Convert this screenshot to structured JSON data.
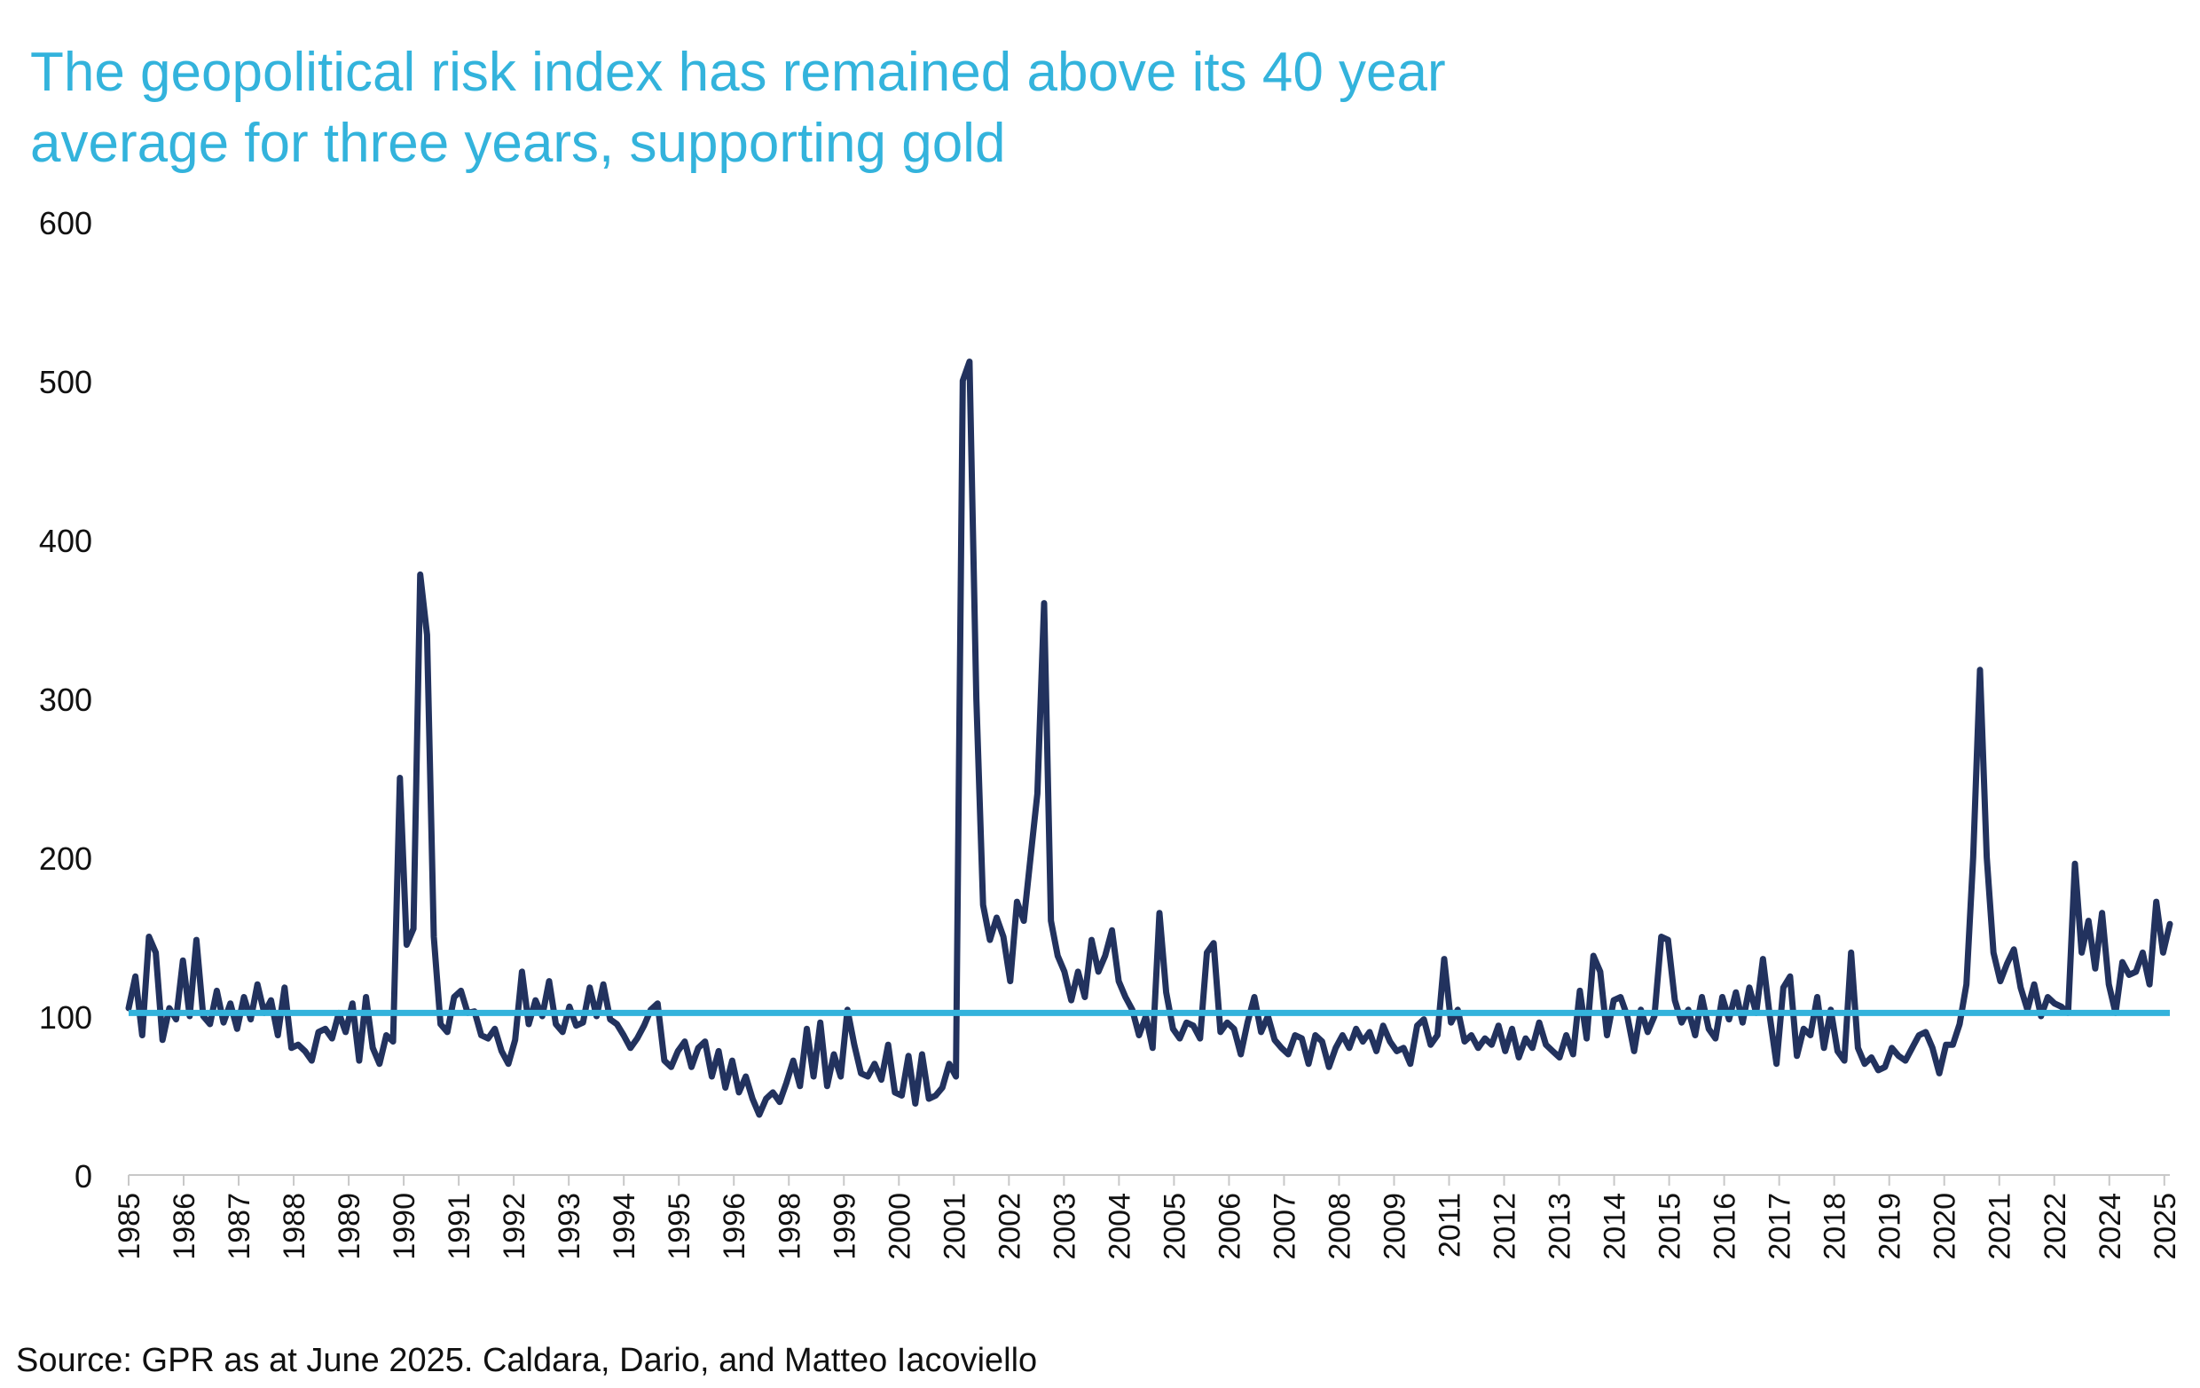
{
  "title_lines": [
    "The geopolitical risk index has remained above its 40 year",
    "average for three years, supporting gold"
  ],
  "source": "Source: GPR as at June 2025. Caldara, Dario, and Matteo Iacoviello",
  "colors": {
    "series": "#22325e",
    "average": "#33b3dc",
    "title": "#33b3dc",
    "axis": "#c8c8c8",
    "text": "#111111"
  },
  "chart_data": {
    "type": "line",
    "title": "The geopolitical risk index has remained above its 40 year average for three years, supporting gold",
    "xlabel": "",
    "ylabel": "",
    "ylim": [
      0,
      600
    ],
    "yticks": [
      "0",
      "100",
      "200",
      "300",
      "400",
      "500",
      "600"
    ],
    "xtick_labels": [
      "1985",
      "1986",
      "1987",
      "1988",
      "1989",
      "1990",
      "1991",
      "1992",
      "1993",
      "1994",
      "1995",
      "1996",
      "1998",
      "1999",
      "2000",
      "2001",
      "2002",
      "2003",
      "2004",
      "2005",
      "2006",
      "2007",
      "2008",
      "2009",
      "2011",
      "2012",
      "2013",
      "2014",
      "2015",
      "2016",
      "2017",
      "2018",
      "2019",
      "2020",
      "2021",
      "2022",
      "2024",
      "2025"
    ],
    "series": [
      {
        "name": "Geopolitical Risk Index",
        "x_start": 1985.0,
        "x_end": 2025.45,
        "values": [
          105,
          125,
          88,
          150,
          140,
          85,
          105,
          98,
          135,
          100,
          148,
          100,
          95,
          116,
          96,
          108,
          92,
          112,
          98,
          120,
          102,
          110,
          88,
          118,
          80,
          82,
          78,
          72,
          90,
          92,
          86,
          102,
          90,
          108,
          72,
          112,
          80,
          70,
          88,
          84,
          250,
          145,
          155,
          378,
          340,
          150,
          95,
          90,
          112,
          116,
          102,
          103,
          88,
          86,
          92,
          78,
          70,
          85,
          128,
          95,
          110,
          100,
          122,
          95,
          90,
          106,
          94,
          96,
          118,
          100,
          120,
          98,
          95,
          88,
          80,
          86,
          94,
          104,
          108,
          72,
          68,
          78,
          84,
          68,
          80,
          84,
          62,
          78,
          55,
          72,
          52,
          62,
          48,
          38,
          48,
          52,
          46,
          58,
          72,
          56,
          92,
          62,
          96,
          56,
          76,
          62,
          104,
          82,
          64,
          62,
          70,
          60,
          82,
          52,
          50,
          75,
          45,
          76,
          48,
          50,
          55,
          70,
          62,
          500,
          512,
          300,
          170,
          148,
          162,
          150,
          122,
          172,
          160,
          200,
          240,
          360,
          160,
          138,
          128,
          110,
          128,
          112,
          148,
          128,
          138,
          154,
          122,
          112,
          104,
          88,
          100,
          80,
          165,
          115,
          92,
          86,
          96,
          94,
          86,
          140,
          146,
          90,
          96,
          92,
          76,
          96,
          112,
          90,
          100,
          85,
          80,
          76,
          88,
          86,
          70,
          88,
          84,
          68,
          80,
          88,
          80,
          92,
          84,
          90,
          78,
          94,
          84,
          78,
          80,
          70,
          94,
          98,
          82,
          88,
          136,
          96,
          104,
          84,
          88,
          80,
          86,
          82,
          94,
          78,
          92,
          74,
          86,
          80,
          96,
          82,
          78,
          74,
          88,
          76,
          116,
          86,
          138,
          128,
          88,
          110,
          112,
          100,
          78,
          104,
          90,
          100,
          150,
          148,
          110,
          96,
          104,
          88,
          112,
          92,
          86,
          112,
          98,
          115,
          96,
          118,
          102,
          136,
          100,
          70,
          118,
          125,
          75,
          92,
          88,
          112,
          80,
          104,
          78,
          72,
          140,
          80,
          70,
          74,
          66,
          68,
          80,
          75,
          72,
          80,
          88,
          90,
          80,
          64,
          82,
          82,
          95,
          120,
          200,
          318,
          200,
          140,
          122,
          133,
          142,
          118,
          104,
          120,
          100,
          112,
          108,
          106,
          102,
          196,
          140,
          160,
          130,
          165,
          120,
          102,
          134,
          126,
          128,
          140,
          120,
          172,
          140,
          158
        ]
      },
      {
        "name": "40 year average",
        "value": 102
      }
    ]
  }
}
